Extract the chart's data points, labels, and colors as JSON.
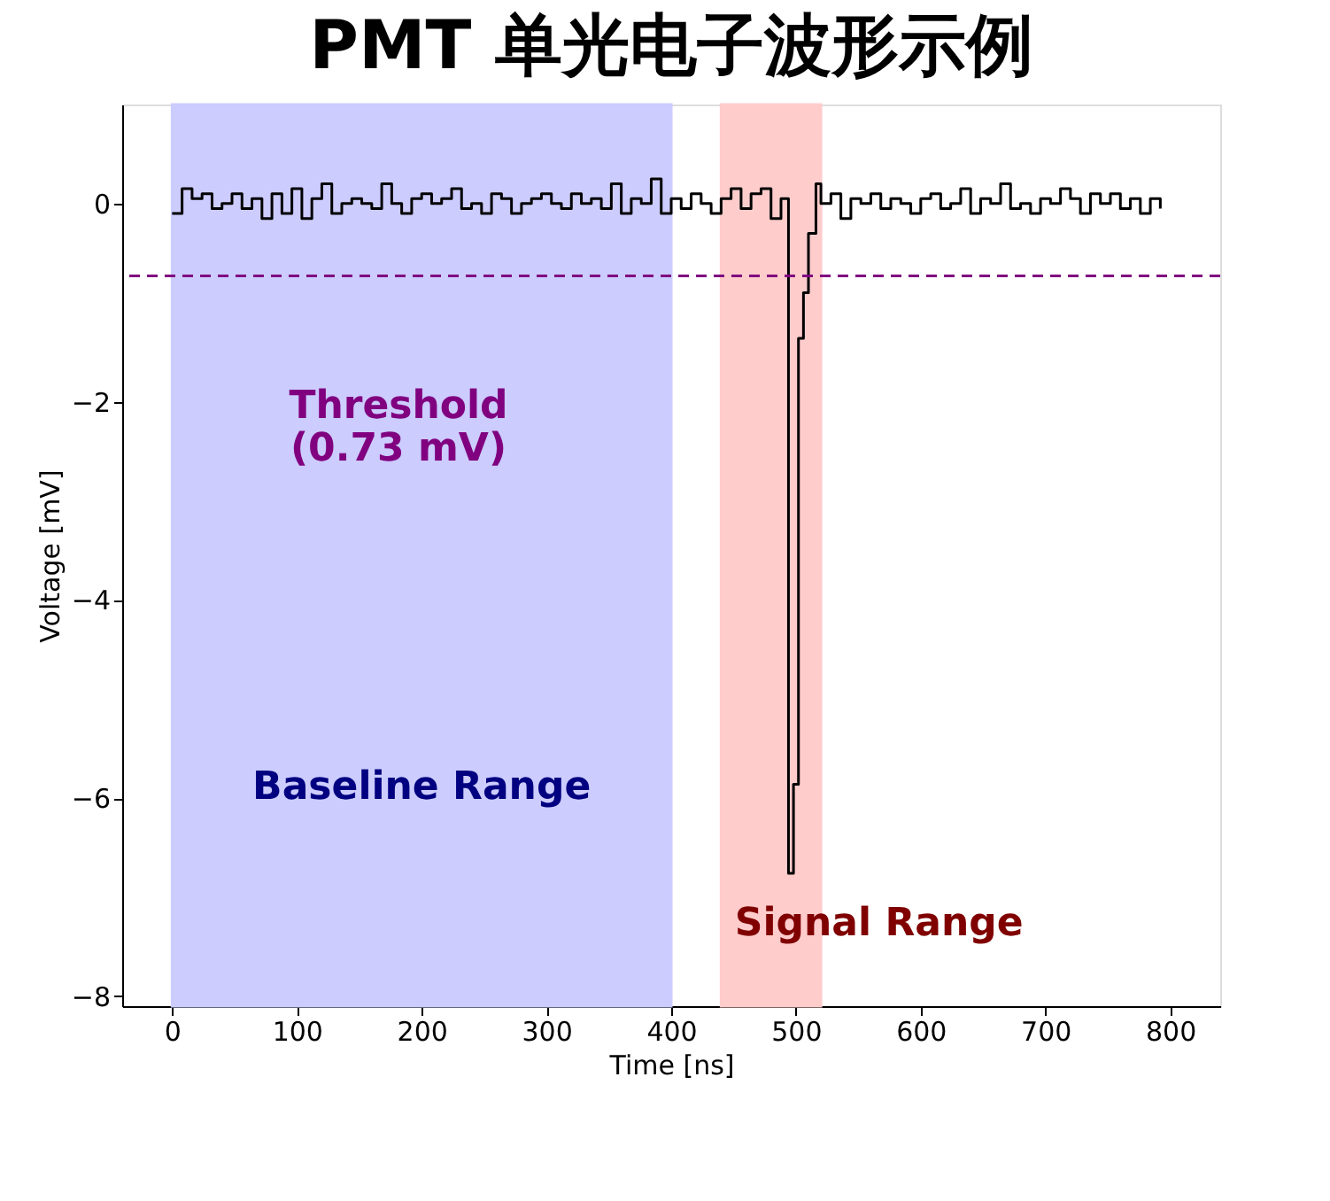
{
  "chart_data": {
    "type": "step",
    "title": "PMT 单光电子波形示例",
    "xlabel": "Time [ns]",
    "ylabel": "Voltage [mV]",
    "x": [
      0,
      8,
      16,
      24,
      32,
      40,
      48,
      56,
      64,
      72,
      80,
      88,
      96,
      104,
      112,
      120,
      128,
      136,
      144,
      152,
      160,
      168,
      176,
      184,
      192,
      200,
      208,
      216,
      224,
      232,
      240,
      248,
      256,
      264,
      272,
      280,
      288,
      296,
      304,
      312,
      320,
      328,
      336,
      344,
      352,
      360,
      368,
      376,
      384,
      392,
      400,
      408,
      416,
      424,
      432,
      440,
      448,
      456,
      464,
      472,
      480,
      488,
      494,
      498,
      502,
      506,
      510,
      516,
      520,
      528,
      536,
      544,
      552,
      560,
      568,
      576,
      584,
      592,
      600,
      608,
      616,
      624,
      632,
      640,
      648,
      656,
      664,
      672,
      680,
      688,
      696,
      704,
      712,
      720,
      728,
      736,
      744,
      752,
      760,
      768,
      776,
      784,
      792
    ],
    "series": [
      {
        "color": "#000000",
        "values": [
          -0.1,
          0.15,
          0.05,
          0.1,
          -0.05,
          0.0,
          0.1,
          -0.05,
          0.05,
          -0.15,
          0.1,
          -0.1,
          0.15,
          -0.15,
          0.05,
          0.2,
          -0.1,
          0.0,
          0.05,
          0.0,
          -0.05,
          0.2,
          0.0,
          -0.1,
          0.05,
          0.1,
          0.0,
          0.05,
          0.15,
          -0.05,
          0.0,
          -0.1,
          0.1,
          0.05,
          -0.1,
          0.0,
          0.05,
          0.1,
          0.0,
          -0.05,
          0.1,
          0.0,
          0.05,
          -0.05,
          0.2,
          -0.1,
          0.05,
          0.0,
          0.25,
          -0.1,
          0.05,
          -0.05,
          0.1,
          0.0,
          -0.1,
          0.05,
          0.15,
          -0.05,
          0.1,
          0.15,
          -0.15,
          0.05,
          -6.76,
          -5.86,
          -1.36,
          -0.9,
          -0.3,
          0.2,
          0.0,
          0.1,
          -0.15,
          0.05,
          0.0,
          0.1,
          -0.05,
          0.05,
          0.0,
          -0.1,
          0.05,
          0.1,
          -0.05,
          0.0,
          0.15,
          -0.1,
          0.05,
          0.0,
          0.2,
          -0.05,
          0.0,
          -0.1,
          0.05,
          0.0,
          0.15,
          0.05,
          -0.1,
          0.1,
          0.0,
          0.1,
          -0.05,
          0.05,
          -0.1,
          0.05,
          -0.05
        ]
      }
    ],
    "xlim": [
      -40,
      840
    ],
    "xticks": [
      0,
      100,
      200,
      300,
      400,
      500,
      600,
      700,
      800
    ],
    "ylim": [
      -8.1,
      1.0
    ],
    "yticks": [
      -8,
      -6,
      -4,
      -2,
      0
    ],
    "grid": false,
    "line_style": "solid",
    "marker": "none",
    "ref_lines": [
      {
        "axis": "y",
        "value": -0.73,
        "label": "Threshold\n(0.73 mV)",
        "color": "#800080",
        "line_style": "dashed"
      }
    ],
    "bands": [
      {
        "axis": "x",
        "from": 0,
        "to": 400,
        "label": "Baseline Range",
        "color": "#ccccff"
      },
      {
        "axis": "x",
        "from": 440,
        "to": 520,
        "label": "Signal Range",
        "color": "#ffcccc"
      }
    ]
  }
}
